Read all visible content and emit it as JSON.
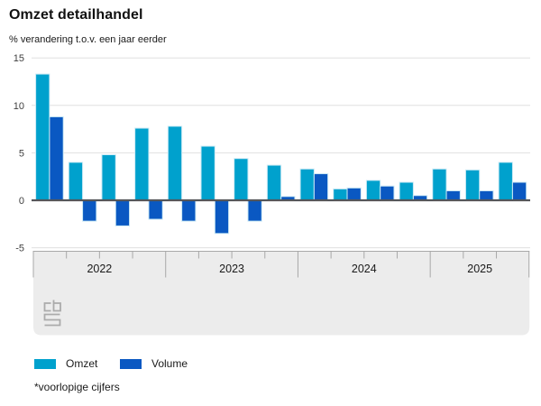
{
  "title": "Omzet detailhandel",
  "subtitle": "% verandering t.o.v. een jaar eerder",
  "footnote": "*voorlopige cijfers",
  "legend": {
    "items": [
      {
        "label": "Omzet",
        "color": "#00a1cd"
      },
      {
        "label": "Volume",
        "color": "#0a58c2"
      }
    ]
  },
  "logo": {
    "name": "cbs-logo"
  },
  "colors": {
    "grid": "#e0e0e0",
    "zero_line": "#55565a",
    "bar_stroke": "#cdeaf5",
    "band_bg": "#ececec",
    "band_border": "#a8a8a8",
    "logo_gray": "#ababab",
    "axis_text": "#404040",
    "year_text": "#1a1a1a"
  },
  "chart_data": {
    "type": "bar",
    "title": "Omzet detailhandel",
    "ylabel": "% verandering t.o.v. een jaar eerder",
    "ylim": [
      -5,
      15
    ],
    "yticks": [
      15,
      10,
      5,
      0,
      -5
    ],
    "grid": true,
    "legend_position": "bottom",
    "categories": [
      "2022 K1",
      "2022 K2",
      "2022 K3",
      "2022 K4",
      "2023 K1",
      "2023 K2",
      "2023 K3",
      "2023 K4",
      "2024 K1",
      "2024 K2",
      "2024 K3",
      "2024 K4",
      "2025 K1",
      "2025 K2",
      "2025 K3"
    ],
    "x_groups": [
      {
        "label": "2022",
        "count": 4
      },
      {
        "label": "2023",
        "count": 4
      },
      {
        "label": "2024",
        "count": 4
      },
      {
        "label": "2025",
        "count": 3
      }
    ],
    "series": [
      {
        "name": "Omzet",
        "color": "#00a1cd",
        "values": [
          13.3,
          4.0,
          4.8,
          7.6,
          7.8,
          5.7,
          4.4,
          3.7,
          3.3,
          1.2,
          2.1,
          1.9,
          3.3,
          3.2,
          4.0
        ]
      },
      {
        "name": "Volume",
        "color": "#0a58c2",
        "values": [
          8.8,
          -2.2,
          -2.7,
          -2.0,
          -2.2,
          -3.5,
          -2.2,
          0.4,
          2.8,
          1.3,
          1.5,
          0.5,
          1.0,
          1.0,
          1.9
        ]
      }
    ]
  }
}
